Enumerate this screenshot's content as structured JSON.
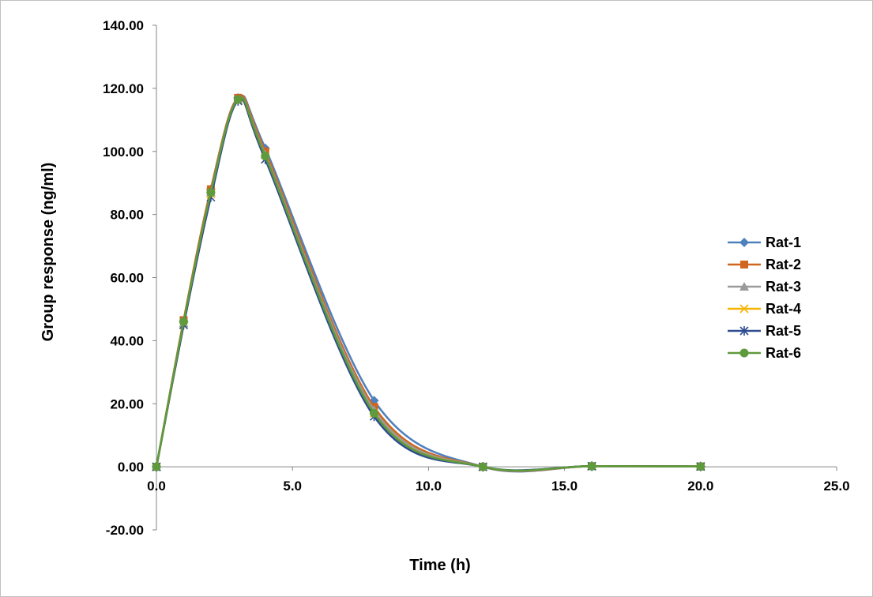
{
  "chart_data": {
    "type": "line",
    "title": "",
    "xlabel": "Time (h)",
    "ylabel": "Group response (ng/ml)",
    "xlim": [
      0,
      25
    ],
    "ylim": [
      -20,
      140
    ],
    "x_ticks": [
      0,
      5,
      10,
      15,
      20,
      25
    ],
    "y_ticks": [
      -20,
      0,
      20,
      40,
      60,
      80,
      100,
      120,
      140
    ],
    "x_tick_labels": [
      "0.0",
      "5.0",
      "10.0",
      "15.0",
      "20.0",
      "25.0"
    ],
    "y_tick_labels": [
      "-20.00",
      "0.00",
      "20.00",
      "40.00",
      "60.00",
      "80.00",
      "100.00",
      "120.00",
      "140.00"
    ],
    "grid": false,
    "smooth": true,
    "legend_position": "right",
    "x": [
      0,
      1,
      2,
      3,
      4,
      8,
      12,
      16,
      20
    ],
    "series": [
      {
        "name": "Rat-1",
        "color": "#4f81bd",
        "marker": "diamond",
        "values": [
          0,
          46.0,
          88.0,
          117.0,
          101.0,
          21.0,
          0,
          0.2,
          0.1
        ]
      },
      {
        "name": "Rat-2",
        "color": "#d0651f",
        "marker": "square",
        "values": [
          0,
          46.5,
          88.0,
          117.0,
          100.0,
          19.0,
          0,
          0.2,
          0.1
        ]
      },
      {
        "name": "Rat-3",
        "color": "#9a9a9a",
        "marker": "triangle",
        "values": [
          0,
          45.5,
          87.0,
          116.5,
          99.0,
          18.0,
          0,
          0.2,
          0.1
        ]
      },
      {
        "name": "Rat-4",
        "color": "#f5b400",
        "marker": "x",
        "values": [
          0,
          45.0,
          86.5,
          116.0,
          97.5,
          17.0,
          0,
          0.2,
          0.1
        ]
      },
      {
        "name": "Rat-5",
        "color": "#2e4d8f",
        "marker": "star",
        "values": [
          0,
          45.0,
          85.5,
          116.0,
          97.5,
          16.0,
          0,
          0.2,
          0.1
        ]
      },
      {
        "name": "Rat-6",
        "color": "#5f9a3c",
        "marker": "circle",
        "values": [
          0,
          46.0,
          87.0,
          116.5,
          98.5,
          17.0,
          0,
          0.2,
          0.1
        ]
      }
    ]
  }
}
